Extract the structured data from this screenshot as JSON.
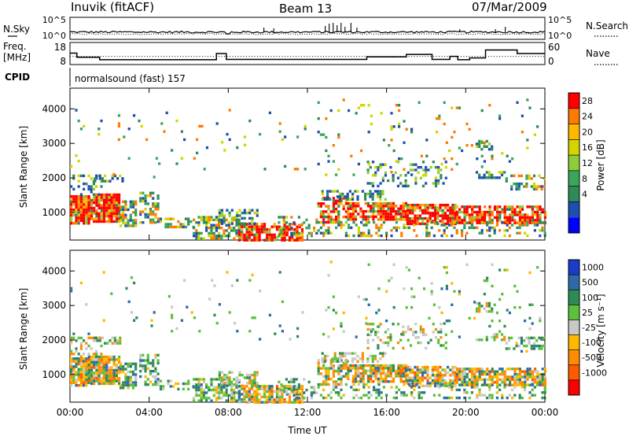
{
  "header": {
    "station": "Inuvik (fitACF)",
    "beam": "Beam 13",
    "date": "07/Mar/2009"
  },
  "chart_data": [
    {
      "type": "line",
      "panel": "noise",
      "left_label": "N.Sky",
      "right_label": "N.Search",
      "left_ticks": [
        "10^5",
        "10^0"
      ],
      "right_ticks": [
        "10^5",
        "10^0"
      ],
      "series": [
        {
          "name": "N.Sky",
          "style": "solid"
        },
        {
          "name": "N.Search",
          "style": "dotted"
        }
      ],
      "x_range_hours": [
        0,
        24
      ]
    },
    {
      "type": "line",
      "panel": "frequency",
      "left_label_top": "Freq.",
      "left_label_bottom": "[MHz]",
      "right_label": "Nave",
      "left_ticks": [
        "18",
        "8"
      ],
      "right_ticks": [
        "60",
        "0"
      ],
      "ylim_left": [
        8,
        18
      ],
      "ylim_right": [
        0,
        60
      ],
      "freq_steps": [
        {
          "t0": 0.0,
          "t1": 0.35,
          "v": 13.2
        },
        {
          "t0": 0.35,
          "t1": 1.5,
          "v": 11.3
        },
        {
          "t0": 1.5,
          "t1": 7.4,
          "v": 10.2
        },
        {
          "t0": 7.4,
          "t1": 7.9,
          "v": 13.0
        },
        {
          "t0": 7.9,
          "t1": 15.0,
          "v": 10.3
        },
        {
          "t0": 15.0,
          "t1": 17.0,
          "v": 11.5
        },
        {
          "t0": 17.0,
          "t1": 18.3,
          "v": 12.6
        },
        {
          "t0": 18.3,
          "t1": 19.2,
          "v": 10.3
        },
        {
          "t0": 19.2,
          "t1": 19.6,
          "v": 11.7
        },
        {
          "t0": 19.6,
          "t1": 20.2,
          "v": 10.2
        },
        {
          "t0": 20.2,
          "t1": 21.0,
          "v": 11.0
        },
        {
          "t0": 21.0,
          "t1": 22.6,
          "v": 14.6
        },
        {
          "t0": 22.6,
          "t1": 24.0,
          "v": 13.0
        }
      ],
      "nave_level": 11.7
    },
    {
      "type": "heatmap",
      "panel": "power",
      "cpid_label": "CPID",
      "cpid_text": "normalsound (fast) 157",
      "ylabel": "Slant Range [km]",
      "y_ticks": [
        1000,
        2000,
        3000,
        4000
      ],
      "ylim": [
        200,
        4600
      ],
      "colorbar_label": "Power [dB]",
      "colorbar_ticks": [
        "28",
        "24",
        "20",
        "16",
        "12",
        "8",
        "4"
      ],
      "colorbar_colors": [
        "#ff0000",
        "#ff7a00",
        "#ffb800",
        "#d4d400",
        "#8fcc3a",
        "#3aa65c",
        "#2e8b57",
        "#1e4fb0",
        "#0000ff"
      ]
    },
    {
      "type": "heatmap",
      "panel": "velocity",
      "ylabel": "Slant Range [km]",
      "xlabel": "Time UT",
      "y_ticks": [
        1000,
        2000,
        3000,
        4000
      ],
      "ylim": [
        200,
        4600
      ],
      "x_ticks": [
        "00:00",
        "04:00",
        "08:00",
        "12:00",
        "16:00",
        "20:00",
        "00:00"
      ],
      "x_tick_hours": [
        0,
        4,
        8,
        12,
        16,
        20,
        24
      ],
      "colorbar_label": "Velocity [m s⁻¹]",
      "colorbar_ticks": [
        "1000",
        "500",
        "100",
        "25",
        "-25",
        "-100",
        "-500",
        "-1000"
      ],
      "colorbar_colors": [
        "#1a3cc8",
        "#2e6aa8",
        "#2e8b57",
        "#5cc03a",
        "#c8c8c8",
        "#ffb800",
        "#ff8c00",
        "#ff5a00",
        "#ff0000"
      ]
    }
  ]
}
